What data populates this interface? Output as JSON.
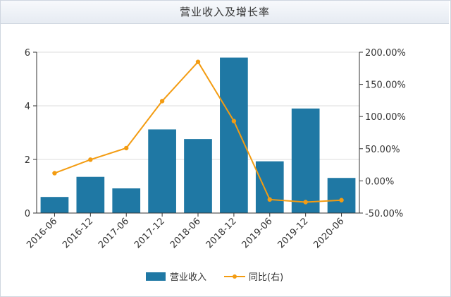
{
  "chart_data": {
    "type": "bar",
    "title": "营业收入及增长率",
    "categories": [
      "2016-06",
      "2016-12",
      "2017-06",
      "2017-12",
      "2018-06",
      "2018-12",
      "2019-06",
      "2019-12",
      "2020-06"
    ],
    "series": [
      {
        "name": "营业收入",
        "kind": "bar",
        "axis": "left",
        "color": "#1f78a4",
        "values": [
          0.6,
          1.35,
          0.92,
          3.12,
          2.76,
          5.8,
          1.93,
          3.9,
          1.31
        ]
      },
      {
        "name": "同比(右)",
        "kind": "line",
        "axis": "right",
        "color": "#f39c12",
        "values": [
          12,
          33,
          51,
          124,
          185,
          93,
          -29,
          -33,
          -30
        ]
      }
    ],
    "y_left": {
      "min": 0,
      "max": 6,
      "ticks": [
        0,
        2,
        4,
        6
      ],
      "tick_labels": [
        "0",
        "2",
        "4",
        "6"
      ]
    },
    "y_right": {
      "min": -50,
      "max": 200,
      "ticks": [
        -50,
        0,
        50,
        100,
        150,
        200
      ],
      "tick_labels": [
        "-50.00%",
        "0.00%",
        "50.00%",
        "100.00%",
        "150.00%",
        "200.00%"
      ]
    },
    "grid": true,
    "legend_position": "bottom"
  }
}
